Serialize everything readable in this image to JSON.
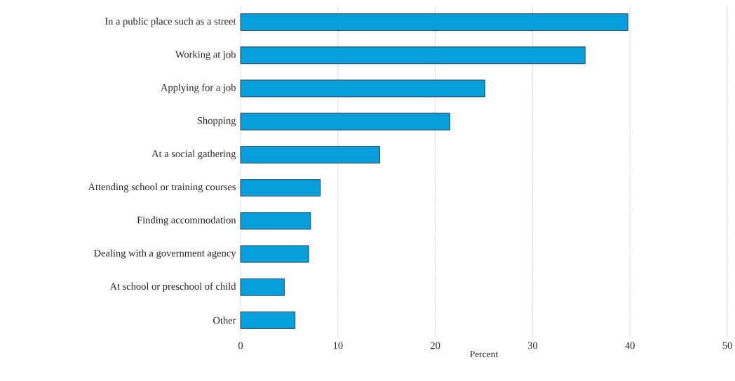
{
  "chart_data": {
    "type": "bar",
    "orientation": "horizontal",
    "xlabel": "Percent",
    "categories": [
      "In a public place such as a street",
      "Working at job",
      "Applying for a job",
      "Shopping",
      "At a social gathering",
      "Attending school or training courses",
      "Finding accommodation",
      "Dealing with a government agency",
      "At school or preschool of child",
      "Other"
    ],
    "values": [
      39.8,
      35.4,
      25.1,
      21.5,
      14.3,
      8.2,
      7.2,
      7.0,
      4.5,
      5.6
    ],
    "color": "#069fdc",
    "xlim": [
      0,
      50
    ],
    "xticks": [
      0,
      10,
      20,
      30,
      40,
      50
    ],
    "grid": "x"
  }
}
